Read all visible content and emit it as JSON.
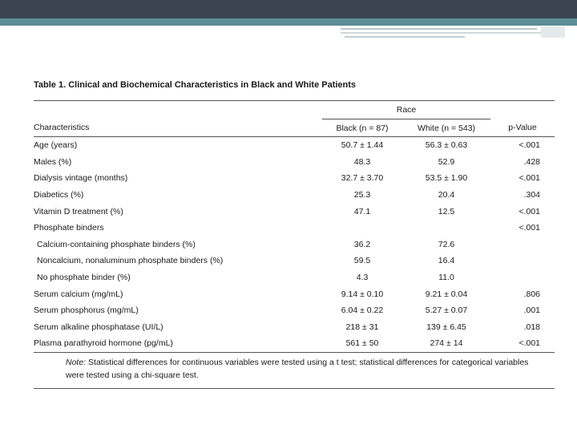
{
  "table": {
    "title": "Table 1. Clinical and Biochemical Characteristics in Black and White Patients",
    "group_header": "Race",
    "columns": [
      "Characteristics",
      "Black (n = 87)",
      "White (n = 543)",
      "p-Value"
    ],
    "rows": [
      {
        "label": "Age (years)",
        "black": "50.7 ± 1.44",
        "white": "56.3 ± 0.63",
        "p": "<.001"
      },
      {
        "label": "Males (%)",
        "black": "48.3",
        "white": "52.9",
        "p": ".428"
      },
      {
        "label": "Dialysis vintage (months)",
        "black": "32.7 ± 3.70",
        "white": "53.5 ± 1.90",
        "p": "<.001"
      },
      {
        "label": "Diabetics (%)",
        "black": "25.3",
        "white": "20.4",
        "p": ".304"
      },
      {
        "label": "Vitamin D treatment (%)",
        "black": "47.1",
        "white": "12.5",
        "p": "<.001"
      },
      {
        "label": "Phosphate binders",
        "black": "",
        "white": "",
        "p": "<.001"
      },
      {
        "label": "Calcium-containing phosphate binders (%)",
        "black": "36.2",
        "white": "72.6",
        "p": ""
      },
      {
        "label": "Noncalcium, nonaluminum phosphate binders (%)",
        "black": "59.5",
        "white": "16.4",
        "p": ""
      },
      {
        "label": "No phosphate binder (%)",
        "black": "4.3",
        "white": "11.0",
        "p": ""
      },
      {
        "label": "Serum calcium (mg/mL)",
        "black": "9.14 ± 0.10",
        "white": "9.21 ± 0.04",
        "p": ".806"
      },
      {
        "label": "Serum phosphorus (mg/mL)",
        "black": "6.04 ± 0.22",
        "white": "5.27 ± 0.07",
        "p": ".001"
      },
      {
        "label": "Serum alkaline phosphatase (UI/L)",
        "black": "218 ± 31",
        "white": "139 ± 6.45",
        "p": ".018"
      },
      {
        "label": "Plasma parathyroid hormone (pg/mL)",
        "black": "561 ± 50",
        "white": "274 ± 14",
        "p": "<.001"
      }
    ],
    "note_label": "Note:",
    "note_text": " Statistical differences for continuous variables were tested using a t test; statistical differences for categorical variables were tested using a chi-square test."
  }
}
